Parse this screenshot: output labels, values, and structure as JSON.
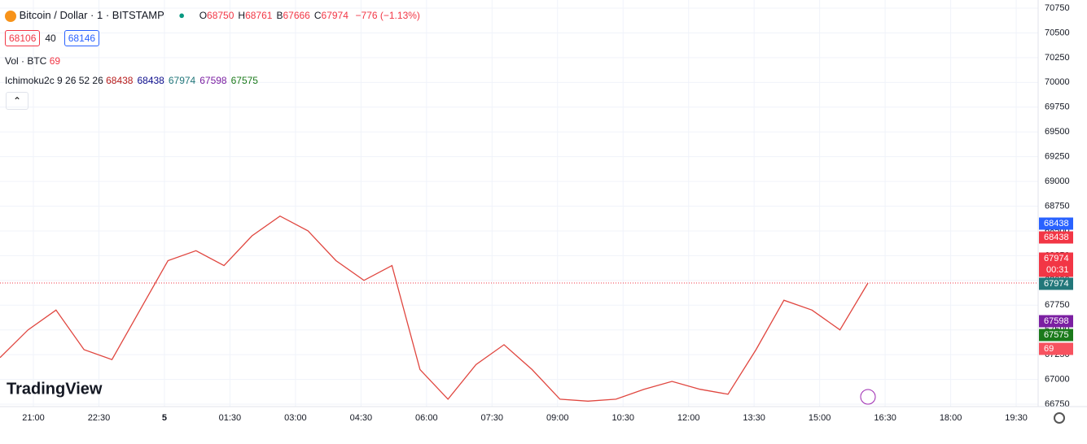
{
  "header": {
    "symbol": "Bitcoin / Dollar · 1 · BITSTAMP",
    "ohlc": [
      {
        "label": "O",
        "value": "68750"
      },
      {
        "label": "H",
        "value": "68761"
      },
      {
        "label": "B",
        "value": "67666"
      },
      {
        "label": "C",
        "value": "67974"
      }
    ],
    "change": "−776 (−1.13%)"
  },
  "quote": {
    "bid": "68106",
    "spread": "40",
    "ask": "68146"
  },
  "indicators": [
    {
      "name": "Vol · BTC",
      "values": [
        "69"
      ]
    },
    {
      "name": "Ichimoku2c 9 26 52 26",
      "values": [
        "68438",
        "68438",
        "67974",
        "67598",
        "67575"
      ]
    }
  ],
  "logo": "TradingView",
  "chart_data": {
    "type": "line",
    "color": "#e0463f",
    "values": [
      67220,
      67500,
      67700,
      67300,
      67200,
      67700,
      68200,
      68300,
      68150,
      68450,
      68650,
      68500,
      68200,
      68000,
      68150,
      67100,
      66800,
      67150,
      67350,
      67100,
      66800,
      66780,
      66800,
      66900,
      66980,
      66900,
      66850,
      67300,
      67800,
      67700,
      67500,
      67974
    ],
    "ylim": [
      66750,
      70750
    ],
    "yticks": [
      66750,
      67000,
      67250,
      67500,
      67750,
      68000,
      68250,
      68500,
      68750,
      69000,
      69250,
      69500,
      69750,
      70000,
      70250,
      70500,
      70750
    ],
    "time_labels": [
      "21:00",
      "22:30",
      "5",
      "01:30",
      "03:00",
      "04:30",
      "06:00",
      "07:30",
      "09:00",
      "10:30",
      "12:00",
      "13:30",
      "15:00",
      "16:30",
      "18:00",
      "19:30"
    ],
    "last_price": 67974,
    "countdown": "00:31",
    "grid": true
  }
}
